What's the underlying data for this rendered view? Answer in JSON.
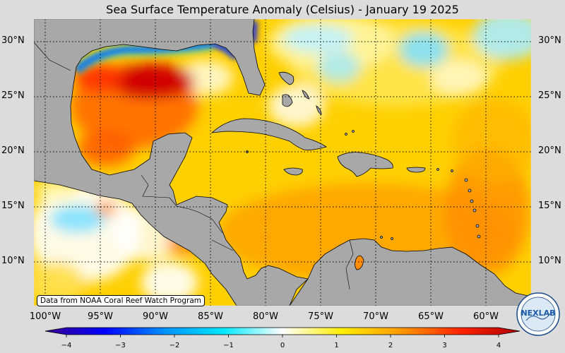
{
  "title": "Sea Surface Temperature Anomaly (Celsius) - January 19 2025",
  "credit": "Data from NOAA Coral Reef Watch Program",
  "logo_text": "NEXLAB",
  "lat_labels": [
    "30°N",
    "25°N",
    "20°N",
    "15°N",
    "10°N"
  ],
  "lon_labels": [
    "100°W",
    "95°W",
    "90°W",
    "85°W",
    "80°W",
    "75°W",
    "70°W",
    "65°W",
    "60°W"
  ],
  "colorbar": {
    "ticks": [
      "−4",
      "−3",
      "−2",
      "−1",
      "0",
      "1",
      "2",
      "3",
      "4"
    ],
    "range": [
      -4,
      4
    ],
    "colors": [
      "#3a0090",
      "#0000ff",
      "#0090ff",
      "#00e8ff",
      "#ffffff",
      "#ffee00",
      "#ff9900",
      "#ff2200",
      "#b00000"
    ]
  },
  "colors": {
    "land": "#a8a8a8",
    "coast": "#000000",
    "background": "#dcdcdc",
    "ocean_base": "#ffd200"
  }
}
